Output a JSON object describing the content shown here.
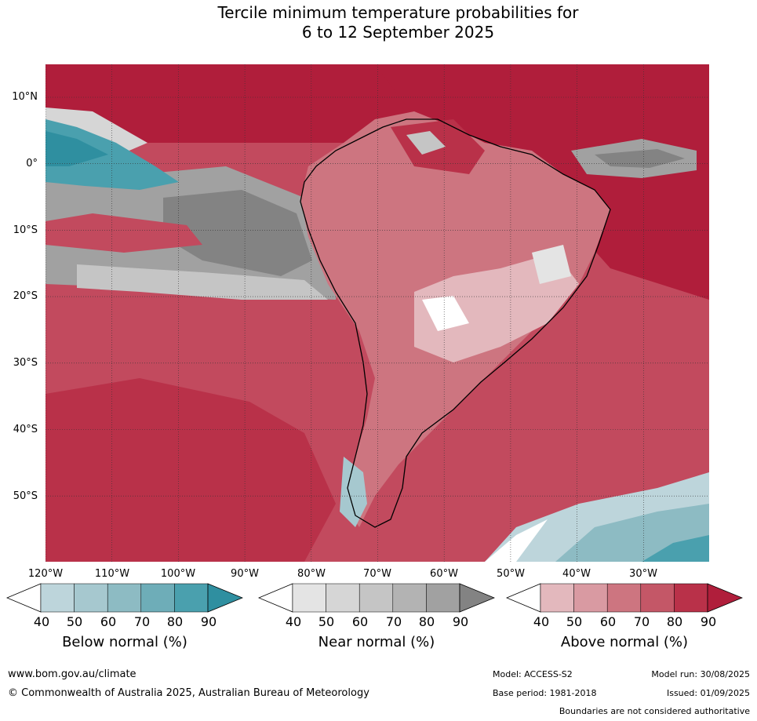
{
  "title": {
    "line1": "Tercile minimum temperature probabilities for",
    "line2": "6 to 12 September 2025"
  },
  "map": {
    "lat_labels": [
      "10°N",
      "0°",
      "10°S",
      "20°S",
      "30°S",
      "40°S",
      "50°S"
    ],
    "lon_labels": [
      "120°W",
      "110°W",
      "100°W",
      "90°W",
      "80°W",
      "70°W",
      "60°W",
      "50°W",
      "40°W",
      "30°W"
    ]
  },
  "colorbars": [
    {
      "id": "below",
      "title": "Below normal (%)",
      "ticks": [
        "40",
        "50",
        "60",
        "70",
        "80",
        "90"
      ],
      "colors": [
        "#bdd5db",
        "#a6c8cf",
        "#8dbbc3",
        "#6eadb8",
        "#4aa0ae",
        "#2f8fa0"
      ]
    },
    {
      "id": "near",
      "title": "Near normal (%)",
      "ticks": [
        "40",
        "50",
        "60",
        "70",
        "80",
        "90"
      ],
      "colors": [
        "#e4e4e4",
        "#d6d6d6",
        "#c5c5c5",
        "#b3b3b3",
        "#a1a1a1",
        "#838383"
      ]
    },
    {
      "id": "above",
      "title": "Above normal (%)",
      "ticks": [
        "40",
        "50",
        "60",
        "70",
        "80",
        "90"
      ],
      "colors": [
        "#e3b8bd",
        "#d99aa2",
        "#cd7580",
        "#c45767",
        "#b93149",
        "#b01e3b"
      ]
    }
  ],
  "footer": {
    "website": "www.bom.gov.au/climate",
    "copyright": "© Commonwealth of Australia 2025, Australian Bureau of Meteorology",
    "model": "Model: ACCESS-S2",
    "base_period": "Base period: 1981-2018",
    "model_run": "Model run: 30/08/2025",
    "issued": "Issued: 01/09/2025",
    "boundaries_note": "Boundaries are not considered authoritative"
  }
}
